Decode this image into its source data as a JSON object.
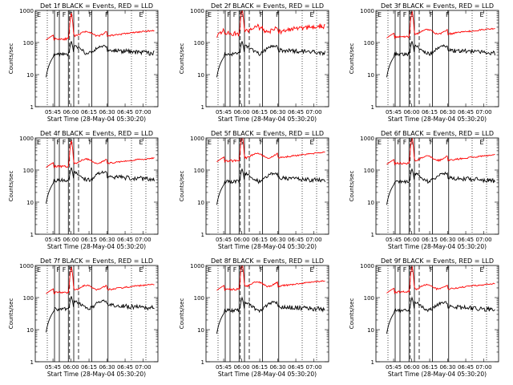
{
  "chart_data": [
    {
      "type": "line",
      "title": "Det 1f BLACK = Events, RED = LLD",
      "series": [
        {
          "name": "Events",
          "color": "#000000"
        },
        {
          "name": "LLD",
          "color": "#ff0000"
        }
      ]
    },
    {
      "type": "line",
      "title": "Det 2f BLACK = Events, RED = LLD",
      "series": [
        {
          "name": "Events",
          "color": "#000000"
        },
        {
          "name": "LLD",
          "color": "#ff0000"
        }
      ]
    },
    {
      "type": "line",
      "title": "Det 3f BLACK = Events, RED = LLD",
      "series": [
        {
          "name": "Events",
          "color": "#000000"
        },
        {
          "name": "LLD",
          "color": "#ff0000"
        }
      ]
    },
    {
      "type": "line",
      "title": "Det 4f BLACK = Events, RED = LLD",
      "series": [
        {
          "name": "Events",
          "color": "#000000"
        },
        {
          "name": "LLD",
          "color": "#ff0000"
        }
      ]
    },
    {
      "type": "line",
      "title": "Det 5f BLACK = Events, RED = LLD",
      "series": [
        {
          "name": "Events",
          "color": "#000000"
        },
        {
          "name": "LLD",
          "color": "#ff0000"
        }
      ]
    },
    {
      "type": "line",
      "title": "Det 6f BLACK = Events, RED = LLD",
      "series": [
        {
          "name": "Events",
          "color": "#000000"
        },
        {
          "name": "LLD",
          "color": "#ff0000"
        }
      ]
    },
    {
      "type": "line",
      "title": "Det 7f BLACK = Events, RED = LLD",
      "series": [
        {
          "name": "Events",
          "color": "#000000"
        },
        {
          "name": "LLD",
          "color": "#ff0000"
        }
      ]
    },
    {
      "type": "line",
      "title": "Det 8f BLACK = Events, RED = LLD",
      "series": [
        {
          "name": "Events",
          "color": "#000000"
        },
        {
          "name": "LLD",
          "color": "#ff0000"
        }
      ]
    },
    {
      "type": "line",
      "title": "Det 9f BLACK = Events, RED = LLD",
      "series": [
        {
          "name": "Events",
          "color": "#000000"
        },
        {
          "name": "LLD",
          "color": "#ff0000"
        }
      ]
    }
  ],
  "shared": {
    "ylabel": "Counts/sec",
    "xlabel": "Start Time (28-May-04 05:30:20)",
    "x_ticks": [
      "05:45",
      "06:00",
      "06:15",
      "06:30",
      "06:45",
      "07:00"
    ],
    "y_ticks": [
      "1",
      "10",
      "100",
      "1000"
    ],
    "y_scale": "log",
    "ylim": [
      1,
      1000
    ],
    "markers": [
      "E",
      "F",
      "F",
      "S",
      "F",
      "F",
      "E"
    ],
    "colors": {
      "events": "#000000",
      "lld": "#ff0000",
      "axis": "#000000"
    }
  }
}
